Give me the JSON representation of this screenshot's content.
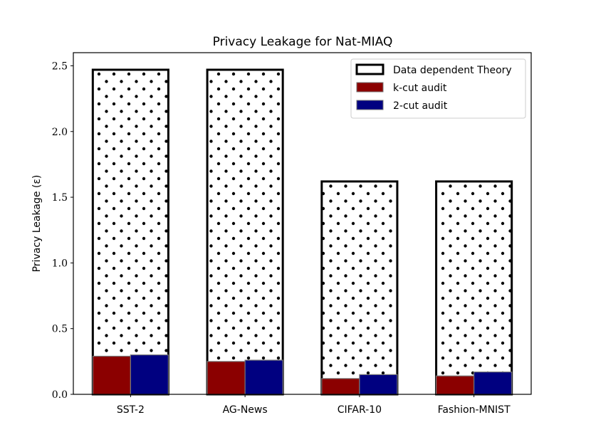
{
  "chart_data": {
    "type": "bar",
    "title": "Privacy Leakage for Nat-MIAQ",
    "xlabel": "",
    "ylabel": "Privacy Leakage (ε)",
    "categories": [
      "SST-2",
      "AG-News",
      "CIFAR-10",
      "Fashion-MNIST"
    ],
    "ylim": [
      0,
      2.6
    ],
    "yticks": [
      0.0,
      0.5,
      1.0,
      1.5,
      2.0,
      2.5
    ],
    "ytick_labels": [
      "0.0",
      "0.5",
      "1.0",
      "1.5",
      "2.0",
      "2.5"
    ],
    "legend_position": "top-right",
    "series": [
      {
        "name": "Data dependent Theory",
        "values": [
          2.47,
          2.47,
          1.62,
          1.62
        ],
        "color": "#ffffff",
        "edge": "#000000",
        "hatch": "dots"
      },
      {
        "name": "k-cut audit",
        "values": [
          0.29,
          0.25,
          0.12,
          0.14
        ],
        "color": "#8b0000",
        "edge": "#777777"
      },
      {
        "name": "2-cut audit",
        "values": [
          0.3,
          0.26,
          0.15,
          0.17
        ],
        "color": "#000080",
        "edge": "#777777"
      }
    ]
  }
}
